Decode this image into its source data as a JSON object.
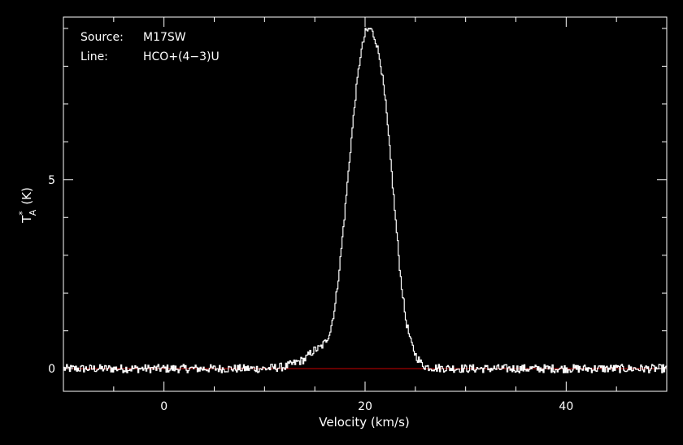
{
  "info": {
    "source_label": "Source:",
    "source_value": "M17SW",
    "line_label": "Line:",
    "line_value": "HCO+(4−3)U"
  },
  "chart_data": {
    "type": "line",
    "title": "",
    "xlabel": "Velocity (km/s)",
    "ylabel_main": "T",
    "ylabel_sup": "*",
    "ylabel_sub": "A",
    "ylabel_unit": "(K)",
    "xlim": [
      -10,
      50
    ],
    "ylim": [
      -0.6,
      9.3
    ],
    "xticks": [
      0,
      20,
      40
    ],
    "yticks": [
      0,
      5
    ],
    "grid": false,
    "colors": {
      "background": "#000000",
      "axes": "#ffffff",
      "spectrum": "#ffffff",
      "baseline": "#cc0000"
    },
    "baseline": 0,
    "series": [
      {
        "x": [
          -10,
          10,
          12,
          13,
          14,
          14.5,
          15,
          15.5,
          16,
          16.5,
          17,
          17.5,
          18,
          18.5,
          19,
          19.5,
          20,
          20.5,
          21,
          21.5,
          22,
          22.5,
          23,
          23.5,
          24,
          24.5,
          25,
          25.5,
          26,
          27,
          30,
          50
        ],
        "values": [
          0,
          0,
          0.05,
          0.15,
          0.25,
          0.4,
          0.5,
          0.55,
          0.7,
          1.0,
          1.7,
          2.9,
          4.3,
          5.8,
          7.2,
          8.3,
          8.9,
          9.0,
          8.7,
          8.1,
          7.0,
          5.5,
          3.9,
          2.4,
          1.3,
          0.7,
          0.35,
          0.15,
          0.05,
          0.02,
          0,
          0
        ]
      }
    ]
  }
}
